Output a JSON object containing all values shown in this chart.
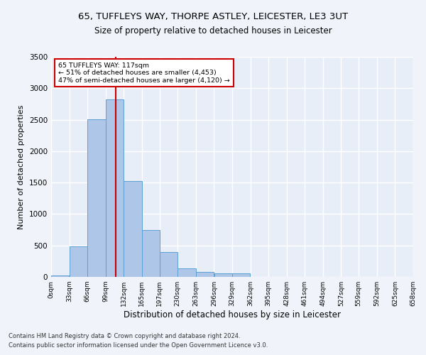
{
  "title1": "65, TUFFLEYS WAY, THORPE ASTLEY, LEICESTER, LE3 3UT",
  "title2": "Size of property relative to detached houses in Leicester",
  "xlabel": "Distribution of detached houses by size in Leicester",
  "ylabel": "Number of detached properties",
  "footer1": "Contains HM Land Registry data © Crown copyright and database right 2024.",
  "footer2": "Contains public sector information licensed under the Open Government Licence v3.0.",
  "annotation_line1": "65 TUFFLEYS WAY: 117sqm",
  "annotation_line2": "← 51% of detached houses are smaller (4,453)",
  "annotation_line3": "47% of semi-detached houses are larger (4,120) →",
  "property_size": 117,
  "bar_edges": [
    0,
    33,
    66,
    99,
    132,
    165,
    197,
    230,
    263,
    296,
    329,
    362,
    395,
    428,
    461,
    494,
    527,
    559,
    592,
    625,
    658
  ],
  "bar_values": [
    25,
    480,
    2510,
    2820,
    1520,
    750,
    390,
    140,
    75,
    55,
    55,
    0,
    0,
    0,
    0,
    0,
    0,
    0,
    0,
    0
  ],
  "bar_color": "#aec6e8",
  "bar_edge_color": "#5a9fd4",
  "vline_color": "#cc0000",
  "vline_x": 117,
  "annotation_box_color": "#cc0000",
  "background_color": "#e8eef8",
  "fig_background_color": "#f0f4fa",
  "grid_color": "#ffffff",
  "ylim": [
    0,
    3500
  ],
  "xlim": [
    0,
    658
  ],
  "title1_fontsize": 9.5,
  "title2_fontsize": 8.5,
  "xlabel_fontsize": 8.5,
  "ylabel_fontsize": 8,
  "tick_labels": [
    "0sqm",
    "33sqm",
    "66sqm",
    "99sqm",
    "132sqm",
    "165sqm",
    "197sqm",
    "230sqm",
    "263sqm",
    "296sqm",
    "329sqm",
    "362sqm",
    "395sqm",
    "428sqm",
    "461sqm",
    "494sqm",
    "527sqm",
    "559sqm",
    "592sqm",
    "625sqm",
    "658sqm"
  ]
}
